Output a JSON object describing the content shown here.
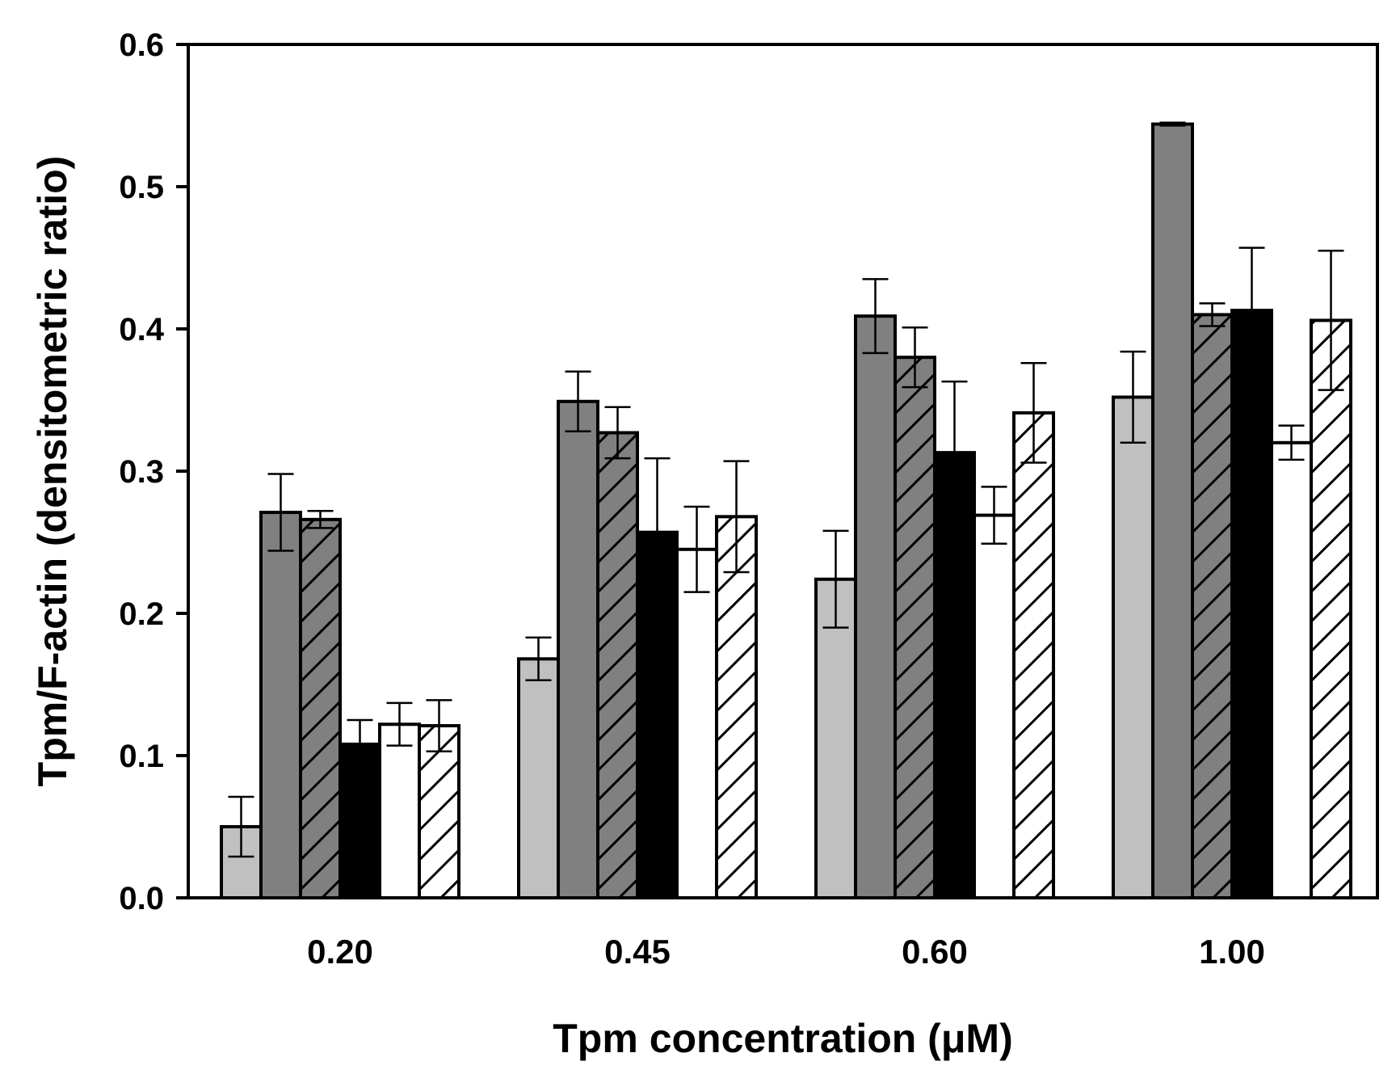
{
  "chart_data": {
    "type": "bar",
    "title": "",
    "xlabel": "Tpm concentration (μM)",
    "ylabel": "Tpm/F-actin (densitometric ratio)",
    "ylim": [
      0,
      0.6
    ],
    "yticks": [
      "0.0",
      "0.1",
      "0.2",
      "0.3",
      "0.4",
      "0.5",
      "0.6"
    ],
    "categories": [
      "0.20",
      "0.45",
      "0.60",
      "1.00"
    ],
    "grid": false,
    "legend": "none",
    "series": [
      {
        "fill": "#c0c0c0",
        "pattern": "solid",
        "values": [
          0.05,
          0.168,
          0.224,
          0.352
        ],
        "errors": [
          0.021,
          0.015,
          0.034,
          0.032
        ]
      },
      {
        "fill": "#808080",
        "pattern": "solid",
        "values": [
          0.271,
          0.349,
          0.409,
          0.544
        ],
        "errors": [
          0.027,
          0.021,
          0.026,
          0.001
        ]
      },
      {
        "fill": "#808080",
        "pattern": "hatch",
        "values": [
          0.266,
          0.327,
          0.38,
          0.41
        ],
        "errors": [
          0.006,
          0.018,
          0.021,
          0.008
        ]
      },
      {
        "fill": "#000000",
        "pattern": "solid",
        "values": [
          0.108,
          0.257,
          0.313,
          0.413
        ],
        "errors": [
          0.017,
          0.052,
          0.05,
          0.044
        ]
      },
      {
        "fill": "#ffffff",
        "pattern": "solid",
        "values": [
          0.122,
          0.245,
          0.269,
          0.32
        ],
        "errors": [
          0.015,
          0.03,
          0.02,
          0.012
        ]
      },
      {
        "fill": "#ffffff",
        "pattern": "hatch",
        "values": [
          0.121,
          0.268,
          0.341,
          0.406
        ],
        "errors": [
          0.018,
          0.039,
          0.035,
          0.049
        ]
      }
    ]
  }
}
